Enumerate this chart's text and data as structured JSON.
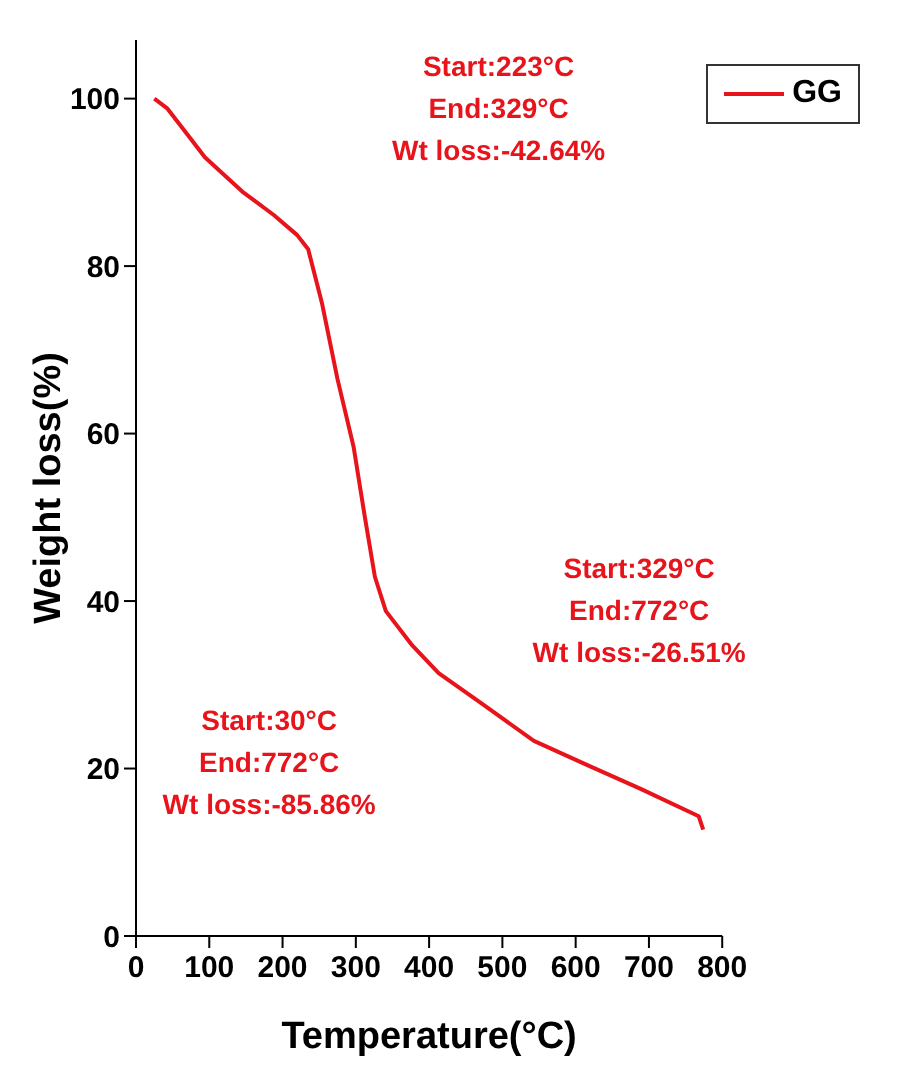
{
  "chart_data": {
    "type": "line",
    "xlabel": "Temperature(°C)",
    "ylabel": "Weight loss(%)",
    "series": [
      {
        "name": "GG",
        "color": "#e8141c",
        "x": [
          25,
          43,
          72,
          94,
          145,
          188,
          220,
          235,
          254,
          275,
          297,
          312,
          326,
          341,
          377,
          413,
          471,
          543,
          616,
          688,
          768,
          774
        ],
        "values": [
          100,
          98.8,
          95.5,
          93,
          88.9,
          86.1,
          83.7,
          82,
          75.5,
          66.5,
          58.4,
          50.2,
          42.9,
          38.8,
          34.7,
          31.4,
          27.8,
          23.3,
          20.4,
          17.6,
          14.3,
          12.7
        ]
      }
    ],
    "xlim": [
      0,
      800
    ],
    "xticks": [
      0,
      100,
      200,
      300,
      400,
      500,
      600,
      700,
      800
    ],
    "ylim": [
      0,
      107
    ],
    "yticks": [
      0,
      20,
      40,
      60,
      80,
      100
    ],
    "legend": "top right",
    "grid": false,
    "marker": "none",
    "line_style": "solid",
    "annotations": [
      "Start:223°C\nEnd:329°C\nWt loss:-42.64%",
      "Start:329°C\nEnd:772°C\nWt loss:-26.51%",
      "Start:30°C\nEnd:772°C\nWt loss:-85.86%"
    ]
  }
}
